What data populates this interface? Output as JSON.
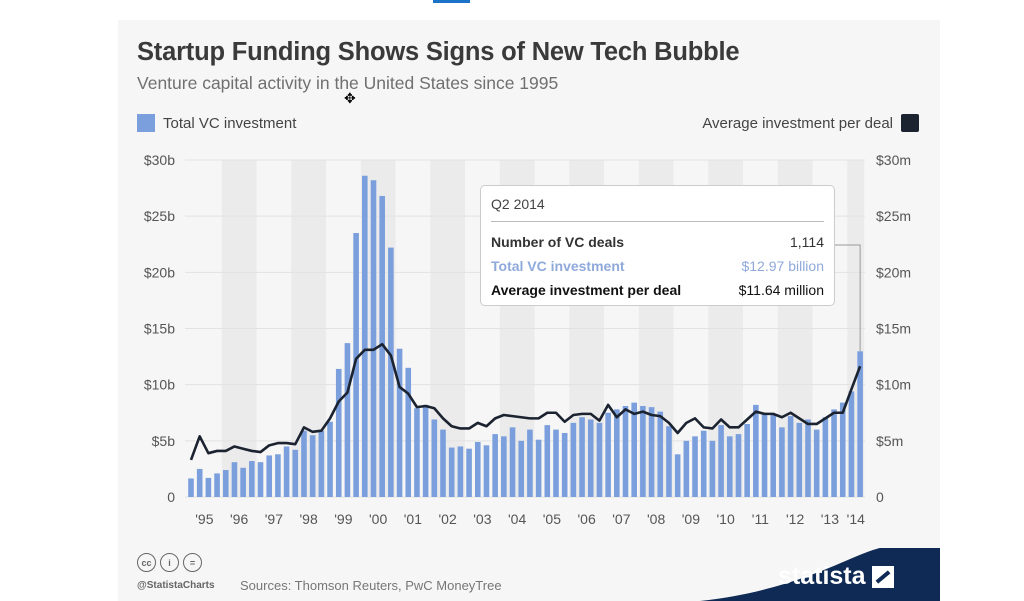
{
  "title": "Startup Funding Shows Signs of New Tech Bubble",
  "subtitle": "Venture capital activity in the United States since 1995",
  "legend": {
    "left": "Total VC investment",
    "right": "Average investment per deal"
  },
  "colors": {
    "bars": "#7b9fdc",
    "line": "#1b2230",
    "tooltip_investment": "#8fa9db",
    "brand": "#0f2a55"
  },
  "tooltip": {
    "header": "Q2 2014",
    "rows": [
      {
        "label": "Number of VC deals",
        "value": "1,114"
      },
      {
        "label": "Total VC investment",
        "value": "$12.97 billion"
      },
      {
        "label": "Average investment per deal",
        "value": "$11.64 million"
      }
    ]
  },
  "footer": {
    "handle": "@StatistaCharts",
    "source": "Sources: Thomson Reuters, PwC MoneyTree",
    "brand": "statista",
    "license_icons": [
      "cc-icon",
      "attribution-icon",
      "no-derivatives-icon"
    ]
  },
  "chart_data": {
    "type": "bar+line",
    "title": "Startup Funding Shows Signs of New Tech Bubble",
    "subtitle": "Venture capital activity in the United States since 1995",
    "x_tick_labels": [
      "'95",
      "'96",
      "'97",
      "'98",
      "'99",
      "'00",
      "'01",
      "'02",
      "'03",
      "'04",
      "'05",
      "'06",
      "'07",
      "'08",
      "'09",
      "'10",
      "'11",
      "'12",
      "'13",
      "'14"
    ],
    "x_period": "quarterly, Q1 1995 - Q2 2014",
    "y_left": {
      "ticks": [
        "0",
        "$5b",
        "$10b",
        "$15b",
        "$20b",
        "$25b",
        "$30b"
      ],
      "range": [
        0,
        30
      ],
      "unit": "billion USD"
    },
    "y_right": {
      "ticks": [
        "0",
        "$5m",
        "$10m",
        "$15m",
        "$20m",
        "$25m",
        "$30m"
      ],
      "range": [
        0,
        30
      ],
      "unit": "million USD"
    },
    "grid": true,
    "legend_placement": "top",
    "series": [
      {
        "name": "Total VC investment",
        "type": "bar",
        "axis": "left",
        "values": [
          1.65,
          2.5,
          1.7,
          2.1,
          2.4,
          3.1,
          2.6,
          3.2,
          3.1,
          3.7,
          3.8,
          4.5,
          4.2,
          5.9,
          5.5,
          5.9,
          6.7,
          11.4,
          13.7,
          23.5,
          28.6,
          28.2,
          26.8,
          22.2,
          13.2,
          11.5,
          7.9,
          8.2,
          6.9,
          6.0,
          4.4,
          4.5,
          4.3,
          4.9,
          4.6,
          5.6,
          5.4,
          6.2,
          5.0,
          6.0,
          5.1,
          6.4,
          6.0,
          5.7,
          6.6,
          7.1,
          6.9,
          6.6,
          7.5,
          7.8,
          8.1,
          8.4,
          8.1,
          8.0,
          7.6,
          6.3,
          3.8,
          5.0,
          5.4,
          5.9,
          5.0,
          6.4,
          5.4,
          5.6,
          6.5,
          8.2,
          7.4,
          7.4,
          6.2,
          7.2,
          6.6,
          6.9,
          6.0,
          7.1,
          7.8,
          8.4,
          9.4,
          12.97
        ]
      },
      {
        "name": "Average investment per deal",
        "type": "line",
        "axis": "right",
        "values": [
          3.3,
          5.4,
          3.9,
          4.1,
          4.1,
          4.5,
          4.3,
          4.1,
          4.0,
          4.6,
          4.8,
          4.8,
          4.7,
          6.2,
          5.8,
          5.9,
          7.0,
          8.5,
          9.3,
          12.3,
          13.1,
          13.1,
          13.6,
          12.6,
          9.8,
          9.2,
          8.0,
          8.1,
          7.9,
          7.0,
          6.3,
          6.1,
          6.1,
          6.6,
          6.3,
          7.0,
          7.3,
          7.2,
          7.1,
          7.0,
          7.0,
          7.5,
          7.5,
          6.7,
          7.3,
          7.4,
          7.4,
          6.8,
          8.2,
          7.1,
          7.8,
          7.4,
          7.6,
          7.3,
          7.2,
          6.6,
          5.7,
          6.6,
          7.0,
          6.2,
          6.1,
          6.9,
          6.2,
          6.2,
          6.9,
          7.6,
          7.4,
          7.4,
          7.1,
          7.5,
          7.0,
          6.5,
          6.5,
          7.0,
          7.5,
          7.5,
          9.6,
          11.64
        ]
      }
    ]
  }
}
